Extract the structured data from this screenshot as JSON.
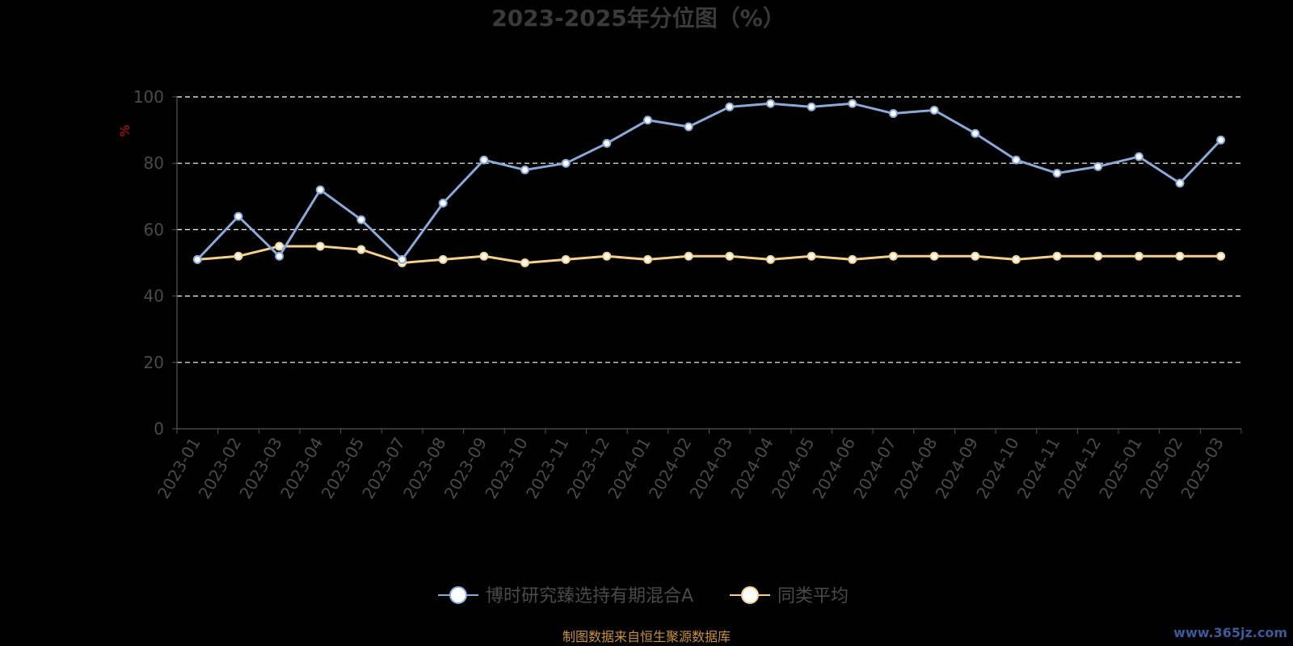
{
  "chart_data": {
    "type": "line",
    "title": "2023-2025年分位图（%）",
    "ylabel": "%",
    "ylim": [
      0,
      100
    ],
    "yticks": [
      "0",
      "20",
      "40",
      "60",
      "80",
      "100"
    ],
    "grid": true,
    "legend_position": "bottom",
    "categories": [
      "2023-01",
      "2023-02",
      "2023-03",
      "2023-04",
      "2023-05",
      "2023-07",
      "2023-08",
      "2023-09",
      "2023-10",
      "2023-11",
      "2023-12",
      "2024-01",
      "2024-02",
      "2024-03",
      "2024-04",
      "2024-05",
      "2024-06",
      "2024-07",
      "2024-08",
      "2024-09",
      "2024-10",
      "2024-11",
      "2024-12",
      "2025-01",
      "2025-02",
      "2025-03"
    ],
    "series": [
      {
        "name": "博时研究臻选持有期混合A",
        "color": "#8aa9d8",
        "values": [
          51,
          64,
          52,
          72,
          63,
          51,
          68,
          81,
          78,
          80,
          86,
          93,
          91,
          97,
          98,
          97,
          98,
          95,
          96,
          89,
          81,
          77,
          79,
          82,
          74,
          87
        ]
      },
      {
        "name": "同类平均",
        "color": "#f5d08a",
        "values": [
          51,
          52,
          55,
          55,
          54,
          50,
          51,
          52,
          50,
          51,
          52,
          51,
          52,
          52,
          51,
          52,
          51,
          52,
          52,
          52,
          51,
          52,
          52,
          52,
          52,
          52
        ]
      }
    ]
  },
  "footer": {
    "source_text": "制图数据来自恒生聚源数据库",
    "watermark": "www.365jz.com"
  }
}
